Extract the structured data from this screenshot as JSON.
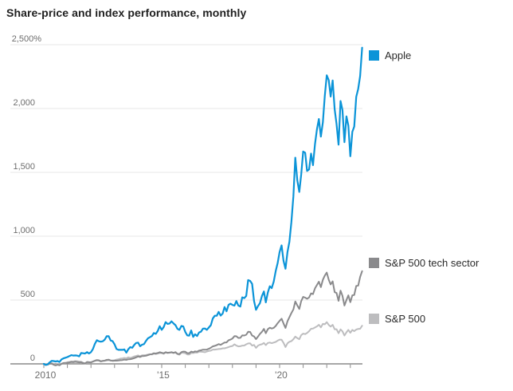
{
  "title": "Share-price and index performance, monthly",
  "chart_data": {
    "type": "line",
    "title": "Share-price and index performance, monthly",
    "interval": "monthly",
    "x_start": "2009-12",
    "x_end": "2023-06",
    "unit": "percent gain",
    "grid": "horizontal",
    "legend_position": "right",
    "ylim": [
      0,
      2500
    ],
    "y_ticks": [
      0,
      500,
      1000,
      1500,
      2000,
      2500
    ],
    "y_tick_labels": [
      "0",
      "500",
      "1,000",
      "1,500",
      "2,000",
      "2,500%"
    ],
    "x_tick_years": [
      2010,
      2011,
      2012,
      2013,
      2014,
      2015,
      2016,
      2017,
      2018,
      2019,
      2020,
      2021,
      2022,
      2023
    ],
    "x_tick_labels": [
      {
        "year": 2010,
        "label": "2010"
      },
      {
        "year": 2015,
        "label": "'15"
      },
      {
        "year": 2020,
        "label": "'20"
      }
    ],
    "axis_color": "#8a8a8a",
    "gridline_color": "#e7e7e7",
    "series": [
      {
        "name": "S&P 500",
        "color": "#bdbdbf",
        "values": [
          0,
          -4,
          -1,
          5,
          6,
          -2,
          -8,
          -1,
          -6,
          2,
          6,
          6,
          13,
          15,
          19,
          19,
          22,
          21,
          18,
          16,
          9,
          2,
          12,
          12,
          13,
          18,
          23,
          26,
          25,
          18,
          22,
          24,
          26,
          29,
          27,
          27,
          28,
          34,
          36,
          41,
          43,
          46,
          44,
          51,
          46,
          51,
          58,
          62,
          66,
          60,
          67,
          68,
          69,
          73,
          76,
          73,
          80,
          77,
          81,
          85,
          85,
          79,
          89,
          85,
          87,
          89,
          85,
          89,
          77,
          72,
          87,
          87,
          83,
          74,
          73,
          85,
          85,
          88,
          88,
          95,
          95,
          94,
          91,
          97,
          101,
          104,
          112,
          112,
          114,
          116,
          117,
          122,
          122,
          126,
          131,
          137,
          140,
          153,
          143,
          137,
          138,
          143,
          144,
          153,
          160,
          161,
          143,
          148,
          125,
          143,
          150,
          154,
          164,
          147,
          164,
          167,
          162,
          167,
          172,
          182,
          190,
          189,
          165,
          132,
          161,
          173,
          178,
          193,
          214,
          202,
          193,
          225,
          237,
          233,
          242,
          256,
          275,
          277,
          285,
          294,
          306,
          286,
          313,
          310,
          327,
          305,
          292,
          306,
          271,
          271,
          240,
          270,
          255,
          222,
          247,
          266,
          244,
          266,
          256,
          269,
          274,
          275,
          299
        ]
      },
      {
        "name": "S&P 500 tech sector",
        "color": "#8a8a8c",
        "values": [
          0,
          -8,
          -6,
          1,
          2,
          -6,
          -12,
          -6,
          -11,
          0,
          7,
          8,
          9,
          12,
          15,
          13,
          16,
          14,
          11,
          13,
          6,
          4,
          15,
          13,
          11,
          18,
          25,
          30,
          28,
          20,
          24,
          26,
          31,
          33,
          26,
          24,
          25,
          25,
          26,
          29,
          30,
          34,
          31,
          36,
          37,
          40,
          45,
          51,
          58,
          54,
          61,
          62,
          64,
          69,
          74,
          76,
          83,
          81,
          85,
          91,
          87,
          83,
          91,
          87,
          89,
          92,
          86,
          92,
          79,
          77,
          92,
          96,
          95,
          84,
          84,
          96,
          91,
          98,
          95,
          104,
          106,
          111,
          111,
          112,
          118,
          127,
          137,
          141,
          147,
          155,
          149,
          159,
          167,
          168,
          185,
          190,
          199,
          217,
          216,
          203,
          204,
          223,
          222,
          228,
          251,
          250,
          222,
          215,
          194,
          214,
          235,
          251,
          274,
          240,
          271,
          283,
          277,
          282,
          297,
          318,
          337,
          354,
          317,
          281,
          334,
          365,
          398,
          426,
          489,
          458,
          430,
          491,
          525,
          519,
          510,
          520,
          552,
          546,
          591,
          618,
          644,
          601,
          658,
          691,
          715,
          659,
          622,
          646,
          562,
          555,
          494,
          574,
          533,
          457,
          500,
          537,
          483,
          537,
          540,
          610,
          613,
          681,
          726
        ]
      },
      {
        "name": "Apple",
        "color": "#0b94d8",
        "values": [
          0,
          -9,
          -3,
          12,
          24,
          22,
          19,
          22,
          15,
          35,
          43,
          48,
          53,
          61,
          68,
          65,
          66,
          65,
          59,
          85,
          83,
          81,
          92,
          81,
          92,
          117,
          157,
          185,
          177,
          174,
          177,
          190,
          216,
          217,
          183,
          178,
          153,
          116,
          110,
          110,
          110,
          113,
          88,
          115,
          131,
          126,
          148,
          164,
          166,
          138,
          150,
          155,
          180,
          200,
          209,
          218,
          241,
          235,
          259,
          295,
          267,
          289,
          327,
          313,
          316,
          333,
          317,
          303,
          275,
          266,
          297,
          293,
          250,
          223,
          221,
          262,
          211,
          232,
          218,
          246,
          252,
          276,
          277,
          267,
          285,
          303,
          355,
          377,
          377,
          407,
          378,
          394,
          445,
          412,
          462,
          471,
          462,
          456,
          492,
          457,
          449,
          521,
          515,
          532,
          656,
          650,
          627,
          493,
          424,
          453,
          475,
          531,
          567,
          482,
          558,
          608,
          593,
          644,
          726,
          788,
          876,
          928,
          808,
          745,
          876,
          956,
          1112,
          1312,
          1615,
          1439,
          1347,
          1482,
          1663,
          1654,
          1511,
          1523,
          1647,
          1556,
          1720,
          1838,
          1918,
          1780,
          1891,
          2096,
          2260,
          2222,
          2094,
          2220,
          1995,
          1878,
          1717,
          2059,
          1989,
          1736,
          1938,
          1867,
          1626,
          1817,
          1859,
          2091,
          2155,
          2255,
          2477
        ]
      }
    ]
  },
  "legend": {
    "items": [
      {
        "label": "Apple",
        "series_index": 2
      },
      {
        "label": "S&P 500 tech sector",
        "series_index": 1
      },
      {
        "label": "S&P 500",
        "series_index": 0
      }
    ]
  }
}
